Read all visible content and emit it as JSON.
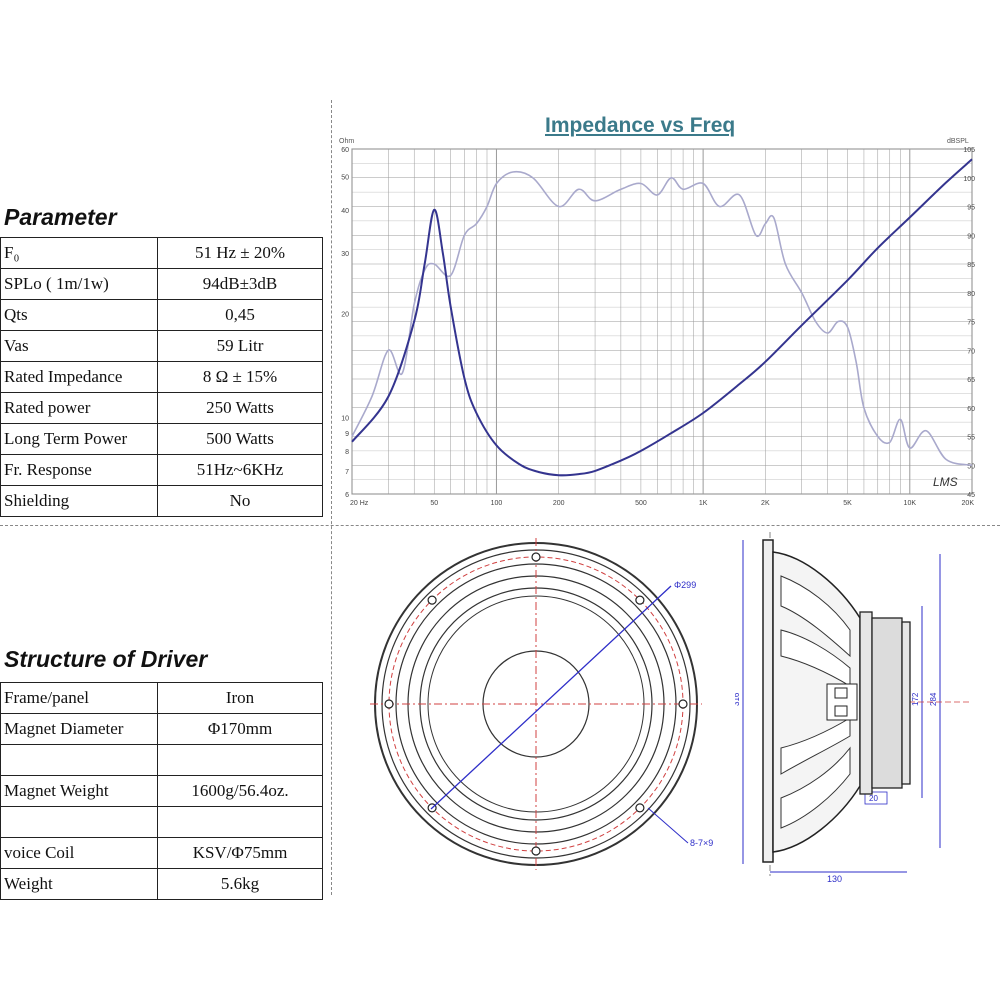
{
  "parameter": {
    "title": "Parameter",
    "rows": [
      {
        "label": "F₀",
        "value": "51 Hz ± 20%"
      },
      {
        "label": "SPLo ( 1m/1w)",
        "value": "94dB±3dB"
      },
      {
        "label": "Qts",
        "value": "0,45"
      },
      {
        "label": "Vas",
        "value": "59 Litr"
      },
      {
        "label": "Rated Impedance",
        "value": "8 Ω ± 15%"
      },
      {
        "label": "Rated power",
        "value": "250 Watts"
      },
      {
        "label": "Long Term Power",
        "value": "500 Watts"
      },
      {
        "label": "Fr. Response",
        "value": "51Hz~6KHz"
      },
      {
        "label": "Shielding",
        "value": "No"
      }
    ]
  },
  "structure": {
    "title": "Structure of Driver",
    "rows": [
      {
        "label": "Frame/panel",
        "value": "Iron"
      },
      {
        "label": "Magnet Diameter",
        "value": "Φ170mm"
      },
      {
        "label": "",
        "value": ""
      },
      {
        "label": "Magnet Weight",
        "value": "1600g/56.4oz."
      },
      {
        "label": "",
        "value": ""
      },
      {
        "label": "voice Coil",
        "value": "KSV/Φ75mm"
      },
      {
        "label": "Weight",
        "value": "5.6kg"
      }
    ]
  },
  "chart": {
    "title": "Impedance vs Freq",
    "left_unit": "Ohm",
    "right_unit": "dBSPL",
    "watermark": "LMS",
    "colors": {
      "impedance": "#34348f",
      "spl": "#a9a9cc",
      "grid": "#9a9a9a"
    },
    "chart_data": {
      "type": "line",
      "title": "Impedance vs Freq",
      "x_scale": "log",
      "xlim": [
        20,
        20000
      ],
      "x_ticks": [
        {
          "label": "20 Hz",
          "value": 20
        },
        {
          "label": "50",
          "value": 50
        },
        {
          "label": "100",
          "value": 100
        },
        {
          "label": "200",
          "value": 200
        },
        {
          "label": "500",
          "value": 500
        },
        {
          "label": "1K",
          "value": 1000
        },
        {
          "label": "2K",
          "value": 2000
        },
        {
          "label": "5K",
          "value": 5000
        },
        {
          "label": "10K",
          "value": 10000
        },
        {
          "label": "20K",
          "value": 20000
        }
      ],
      "y_left": {
        "unit": "Ohm",
        "scale": "log",
        "range": [
          6,
          60
        ],
        "ticks": [
          {
            "label": "60",
            "value": 60
          },
          {
            "label": "50",
            "value": 50
          },
          {
            "label": "40",
            "value": 40
          },
          {
            "label": "30",
            "value": 30
          },
          {
            "label": "20",
            "value": 20
          },
          {
            "label": "10",
            "value": 10
          },
          {
            "label": "9",
            "value": 9
          },
          {
            "label": "8",
            "value": 8
          },
          {
            "label": "7",
            "value": 7
          },
          {
            "label": "6",
            "value": 6
          }
        ]
      },
      "y_right": {
        "unit": "dBSPL",
        "scale": "linear",
        "range": [
          45,
          105
        ],
        "ticks": [
          {
            "label": "105",
            "value": 105
          },
          {
            "label": "100",
            "value": 100
          },
          {
            "label": "95",
            "value": 95
          },
          {
            "label": "90",
            "value": 90
          },
          {
            "label": "85",
            "value": 85
          },
          {
            "label": "80",
            "value": 80
          },
          {
            "label": "75",
            "value": 75
          },
          {
            "label": "70",
            "value": 70
          },
          {
            "label": "65",
            "value": 65
          },
          {
            "label": "60",
            "value": 60
          },
          {
            "label": "55",
            "value": 55
          },
          {
            "label": "50",
            "value": 50
          },
          {
            "label": "45",
            "value": 45
          }
        ]
      },
      "series": [
        {
          "axis": "left",
          "x": [
            20,
            30,
            40,
            45,
            50,
            55,
            60,
            70,
            80,
            100,
            130,
            160,
            200,
            250,
            300,
            400,
            500,
            700,
            1000,
            1500,
            2000,
            3000,
            5000,
            7000,
            10000,
            15000,
            20000
          ],
          "y": [
            8.5,
            11.5,
            19,
            28,
            40,
            30,
            21,
            13,
            10.3,
            8.3,
            7.3,
            6.95,
            6.8,
            6.85,
            7.0,
            7.5,
            8.0,
            9.0,
            10.3,
            12.5,
            14.5,
            18.5,
            25,
            31,
            38,
            48,
            56
          ]
        },
        {
          "axis": "right",
          "x": [
            20,
            25,
            30,
            35,
            40,
            45,
            50,
            60,
            70,
            80,
            90,
            100,
            120,
            150,
            200,
            250,
            300,
            400,
            500,
            600,
            700,
            800,
            1000,
            1200,
            1500,
            1800,
            2000,
            2200,
            2500,
            3000,
            3500,
            4000,
            4500,
            5000,
            5500,
            6000,
            7000,
            8000,
            9000,
            10000,
            12000,
            15000,
            20000
          ],
          "y": [
            55,
            62,
            70,
            66,
            78,
            84,
            85,
            83,
            90,
            92,
            95,
            99,
            101,
            100,
            95,
            98,
            96,
            98,
            99,
            97,
            100,
            98,
            99,
            95,
            97,
            90,
            92,
            93,
            85,
            80,
            75,
            73,
            75,
            74,
            68,
            60,
            55,
            54,
            58,
            53,
            56,
            51,
            50
          ]
        }
      ]
    }
  },
  "drawing": {
    "dims": {
      "outer_diameter": "Φ299",
      "holes": "8-7×9",
      "height_total": "316",
      "height_mid": "172",
      "height_right": "284",
      "flange": "20",
      "depth": "130"
    }
  }
}
